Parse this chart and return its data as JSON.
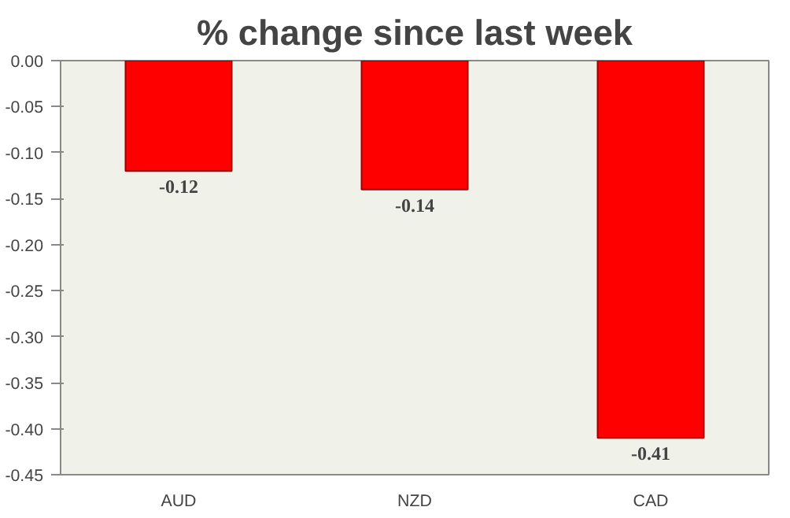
{
  "chart_data": {
    "type": "bar",
    "title": "% change since last week",
    "categories": [
      "AUD",
      "NZD",
      "CAD"
    ],
    "values": [
      -0.12,
      -0.14,
      -0.41
    ],
    "color": "#ff0000",
    "ylim": [
      -0.45,
      0
    ],
    "yticks": [
      {
        "value": 0,
        "label": "0.00"
      },
      {
        "value": -0.05,
        "label": "-0.05"
      },
      {
        "value": -0.1,
        "label": "-0.10"
      },
      {
        "value": -0.15,
        "label": "-0.15"
      },
      {
        "value": -0.2,
        "label": "-0.20"
      },
      {
        "value": -0.25,
        "label": "-0.25"
      },
      {
        "value": -0.3,
        "label": "-0.30"
      },
      {
        "value": -0.35,
        "label": "-0.35"
      },
      {
        "value": -0.4,
        "label": "-0.40"
      },
      {
        "value": -0.45,
        "label": "-0.45"
      }
    ],
    "grid": false,
    "data_labels": true
  }
}
